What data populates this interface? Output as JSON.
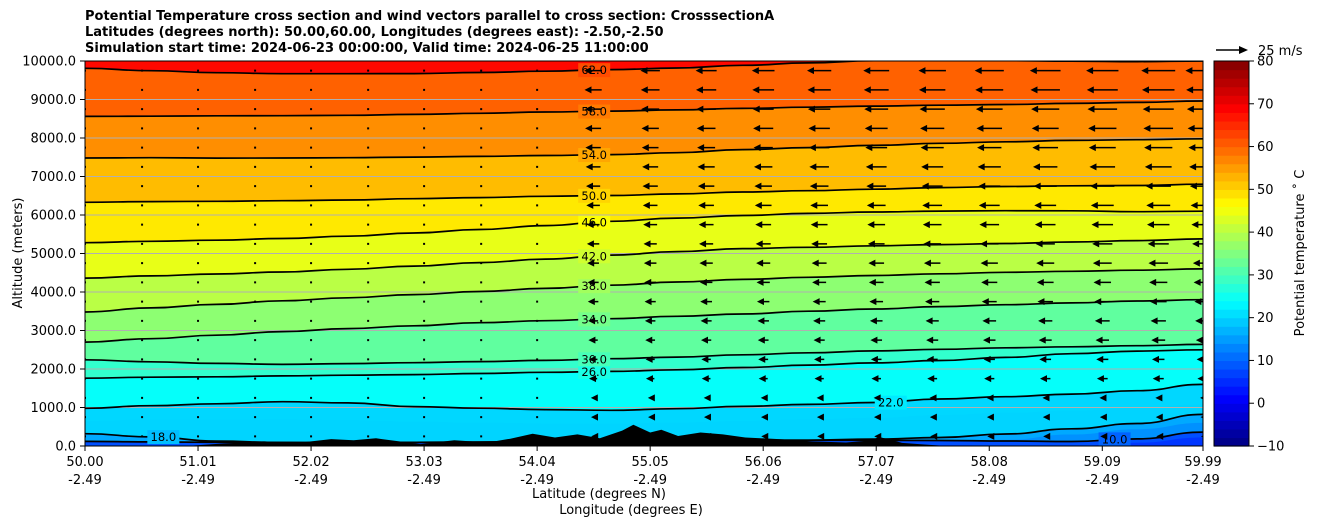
{
  "title_lines": [
    "Potential Temperature cross section and wind vectors parallel to cross section: CrosssectionA",
    "Latitudes (degrees north): 50.00,60.00, Longitudes (degrees east): -2.50,-2.50",
    "Simulation start time: 2024-06-23 00:00:00, Valid time: 2024-06-25 11:00:00"
  ],
  "chart_data": {
    "type": "heatmap",
    "xlabel": "Latitude (degrees N)",
    "xlabel2": "Longitude (degrees E)",
    "ylabel": "Altitude (meters)",
    "x_tick_latitudes": [
      "50.00",
      "51.01",
      "52.02",
      "53.03",
      "54.04",
      "55.05",
      "56.06",
      "57.07",
      "58.08",
      "59.09",
      "59.99"
    ],
    "x_tick_longitudes": [
      "-2.49",
      "-2.49",
      "-2.49",
      "-2.49",
      "-2.49",
      "-2.49",
      "-2.49",
      "-2.49",
      "-2.49",
      "-2.49",
      "-2.49"
    ],
    "x_tick_values": [
      50.0,
      51.01,
      52.02,
      53.03,
      54.04,
      55.05,
      56.06,
      57.07,
      58.08,
      59.09,
      59.99
    ],
    "xlim": [
      50.0,
      59.99
    ],
    "y_ticks": [
      "0.0",
      "1000.0",
      "2000.0",
      "3000.0",
      "4000.0",
      "5000.0",
      "6000.0",
      "7000.0",
      "8000.0",
      "9000.0",
      "10000.0"
    ],
    "y_tick_values": [
      0,
      1000,
      2000,
      3000,
      4000,
      5000,
      6000,
      7000,
      8000,
      9000,
      10000
    ],
    "ylim": [
      0,
      10000
    ],
    "grid": "horizontal",
    "colorbar": {
      "label": "Potential temperature $^\\circ$C",
      "label_display": "Potential temperature ˚ C",
      "range": [
        -10,
        80
      ],
      "ticks": [
        "−10",
        "0",
        "10",
        "20",
        "30",
        "40",
        "50",
        "60",
        "70",
        "80"
      ],
      "tick_values": [
        -10,
        0,
        10,
        20,
        30,
        40,
        50,
        60,
        70,
        80
      ],
      "colormap": "jet"
    },
    "quiver_key": {
      "label": "25 m/s",
      "speed": 25
    },
    "contours": [
      {
        "level": 10,
        "label": "10.0",
        "alts": [
          120,
          120,
          120,
          120,
          120,
          120,
          120,
          120,
          120,
          120,
          120,
          120,
          120,
          120,
          120,
          120,
          200,
          360
        ]
      },
      {
        "level": 18,
        "label": "18.0",
        "alts": [
          320,
          250,
          150,
          120,
          120,
          120,
          120,
          120,
          120,
          120,
          120,
          120,
          150,
          200,
          300,
          450,
          600,
          820
        ]
      },
      {
        "level": 22,
        "label": "22.0",
        "alts": [
          980,
          1060,
          1120,
          1180,
          1150,
          1050,
          1000,
          950,
          920,
          950,
          1000,
          1050,
          1100,
          1200,
          1270,
          1350,
          1450,
          1600
        ]
      },
      {
        "level": 26,
        "label": "26.0",
        "alts": [
          1760,
          1800,
          1820,
          1850,
          1870,
          1880,
          1900,
          1920,
          1930,
          1960,
          2010,
          2070,
          2130,
          2200,
          2290,
          2400,
          2480,
          2500
        ]
      },
      {
        "level": 30,
        "label": "30.0",
        "alts": [
          2240,
          2200,
          2170,
          2150,
          2170,
          2190,
          2210,
          2230,
          2260,
          2290,
          2340,
          2390,
          2440,
          2490,
          2540,
          2580,
          2620,
          2640
        ]
      },
      {
        "level": 34,
        "label": "34.0",
        "alts": [
          2700,
          2800,
          2900,
          3000,
          3080,
          3150,
          3220,
          3260,
          3300,
          3350,
          3400,
          3470,
          3530,
          3600,
          3660,
          3720,
          3780,
          3800
        ]
      },
      {
        "level": 38,
        "label": "38.0",
        "alts": [
          3480,
          3600,
          3700,
          3800,
          3880,
          3960,
          4030,
          4100,
          4170,
          4240,
          4300,
          4350,
          4400,
          4450,
          4500,
          4540,
          4580,
          4600
        ]
      },
      {
        "level": 42,
        "label": "42.0",
        "alts": [
          4360,
          4430,
          4490,
          4550,
          4620,
          4700,
          4780,
          4860,
          4950,
          5030,
          5100,
          5130,
          5170,
          5210,
          5250,
          5300,
          5350,
          5380
        ]
      },
      {
        "level": 46,
        "label": "46.0",
        "alts": [
          5280,
          5330,
          5370,
          5420,
          5480,
          5560,
          5640,
          5730,
          5830,
          5900,
          5960,
          6010,
          6050,
          6080,
          6100,
          6110,
          6100,
          6100
        ]
      },
      {
        "level": 50,
        "label": "50.0",
        "alts": [
          6330,
          6360,
          6380,
          6400,
          6420,
          6450,
          6470,
          6490,
          6500,
          6530,
          6570,
          6600,
          6640,
          6690,
          6730,
          6760,
          6780,
          6800
        ]
      },
      {
        "level": 54,
        "label": "54.0",
        "alts": [
          7480,
          7500,
          7500,
          7510,
          7520,
          7530,
          7540,
          7550,
          7560,
          7600,
          7670,
          7720,
          7780,
          7840,
          7890,
          7940,
          7970,
          7980
        ]
      },
      {
        "level": 58,
        "label": "58.0",
        "alts": [
          8560,
          8580,
          8600,
          8610,
          8620,
          8640,
          8660,
          8680,
          8690,
          8710,
          8740,
          8770,
          8800,
          8830,
          8860,
          8900,
          8940,
          8960
        ]
      },
      {
        "level": 62,
        "label": "62.0",
        "alts": [
          9810,
          9760,
          9720,
          9700,
          9700,
          9700,
          9720,
          9740,
          9770,
          9800,
          9860,
          9920,
          9980,
          10000,
          10000,
          10000,
          10000,
          10000
        ]
      }
    ],
    "filled_bands": [
      {
        "temp": 6,
        "alts": [
          0,
          0,
          0,
          0,
          0,
          0,
          0,
          0,
          0,
          0,
          0,
          0,
          0,
          0,
          0,
          0,
          100,
          220
        ]
      },
      {
        "temp": 14,
        "alts": [
          0,
          0,
          0,
          0,
          0,
          0,
          0,
          0,
          0,
          0,
          0,
          0,
          0,
          40,
          150,
          300,
          450,
          600
        ]
      },
      {
        "temp": 20,
        "alts": [
          650,
          700,
          700,
          720,
          700,
          660,
          620,
          590,
          570,
          590,
          620,
          660,
          700,
          780,
          850,
          920,
          1000,
          1080
        ]
      }
    ],
    "terrain": {
      "lat": [
        50.0,
        50.9,
        51.2,
        51.6,
        51.9,
        52.2,
        52.4,
        52.6,
        53.0,
        53.3,
        53.6,
        53.8,
        54.0,
        54.2,
        54.4,
        54.6,
        54.8,
        54.9,
        55.05,
        55.15,
        55.3,
        55.5,
        55.7,
        55.9,
        56.2,
        56.5,
        56.8,
        57.0,
        57.1,
        57.2,
        57.3,
        57.5,
        57.7
      ],
      "alt": [
        0,
        0,
        60,
        120,
        80,
        180,
        150,
        200,
        50,
        150,
        90,
        190,
        320,
        220,
        300,
        200,
        400,
        550,
        350,
        420,
        260,
        350,
        300,
        220,
        180,
        120,
        90,
        140,
        230,
        160,
        80,
        40,
        0
      ]
    },
    "wind_rows_alt": [
      250,
      750,
      1250,
      1750,
      2250,
      2750,
      3250,
      3750,
      4250,
      4750,
      5250,
      5750,
      6250,
      6750,
      7250,
      7750,
      8250,
      8750,
      9250,
      9750
    ],
    "wind_cols_lat": [
      50.0,
      50.51,
      51.01,
      51.52,
      52.02,
      52.53,
      53.03,
      53.54,
      54.04,
      54.54,
      55.05,
      55.55,
      56.06,
      56.56,
      57.07,
      57.57,
      58.08,
      58.58,
      59.09,
      59.59,
      59.99
    ]
  }
}
